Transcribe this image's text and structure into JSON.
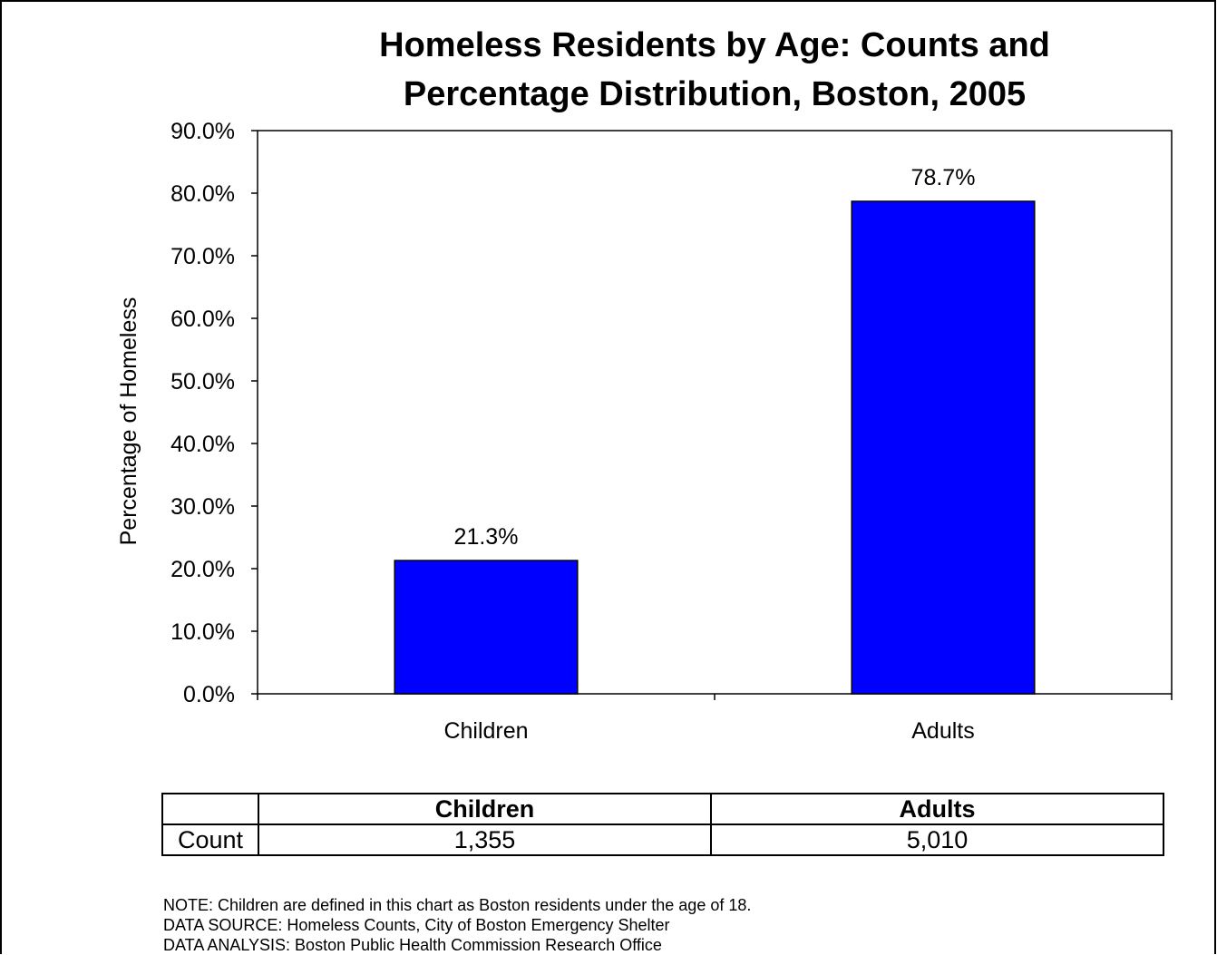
{
  "chart_data": {
    "type": "bar",
    "title": "Homeless Residents by Age: Counts and Percentage Distribution, Boston, 2005",
    "title_lines": [
      "Homeless Residents by Age: Counts and",
      "Percentage Distribution, Boston, 2005"
    ],
    "xlabel": "",
    "ylabel": "Percentage of Homeless",
    "categories": [
      "Children",
      "Adults"
    ],
    "values": [
      21.3,
      78.7
    ],
    "data_labels": [
      "21.3%",
      "78.7%"
    ],
    "ylim": [
      0,
      90
    ],
    "yticks": [
      0,
      10,
      20,
      30,
      40,
      50,
      60,
      70,
      80,
      90
    ],
    "ytick_labels": [
      "0.0%",
      "10.0%",
      "20.0%",
      "30.0%",
      "40.0%",
      "50.0%",
      "60.0%",
      "70.0%",
      "80.0%",
      "90.0%"
    ],
    "bar_color": "#0000ff",
    "grid": false,
    "legend": "none"
  },
  "table": {
    "row_label": "Count",
    "headers": [
      "Children",
      "Adults"
    ],
    "values": [
      "1,355",
      "5,010"
    ]
  },
  "notes": [
    "NOTE: Children are defined in this chart as Boston residents under the age of 18.",
    "DATA SOURCE: Homeless Counts, City of Boston Emergency Shelter",
    "DATA ANALYSIS: Boston Public Health Commission Research Office"
  ]
}
